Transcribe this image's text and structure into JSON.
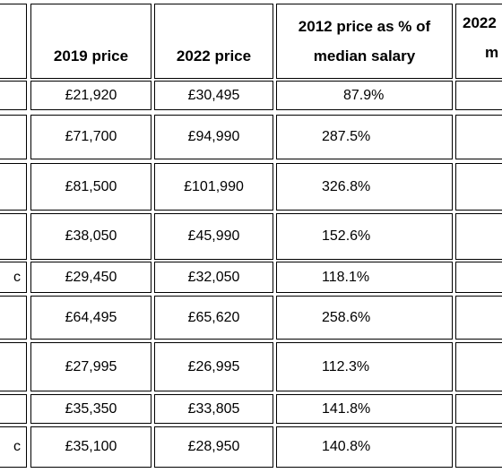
{
  "table": {
    "header": [
      "2019 price",
      "2022 price",
      "2012 price as % of median salary"
    ],
    "partial_header": [
      "2022",
      "m"
    ],
    "rows": [
      {
        "cells": [
          "£21,920",
          "£30,495",
          "87.9%"
        ]
      },
      {
        "cells": [
          "£71,700",
          "£94,990",
          "287.5%"
        ]
      },
      {
        "cells": [
          "£81,500",
          "£101,990",
          "326.8%"
        ]
      },
      {
        "cells": [
          "£38,050",
          "£45,990",
          "152.6%"
        ]
      },
      {
        "stub": "c",
        "cells": [
          "£29,450",
          "£32,050",
          "118.1%"
        ]
      },
      {
        "cells": [
          "£64,495",
          "£65,620",
          "258.6%"
        ]
      },
      {
        "cells": [
          "£27,995",
          "£26,995",
          "112.3%"
        ]
      },
      {
        "cells": [
          "£35,350",
          "£33,805",
          "141.8%"
        ]
      },
      {
        "stub": "c",
        "cells": [
          "£35,100",
          "£28,950",
          "140.8%"
        ]
      }
    ]
  }
}
